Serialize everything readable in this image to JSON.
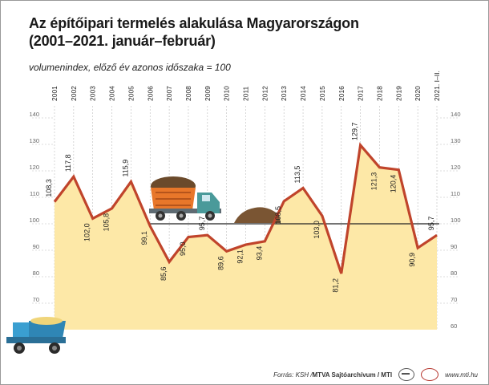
{
  "title_line1": "Az építőipari termelés alakulása Magyarországon",
  "title_line2": "(2001–2021. január–február)",
  "subtitle": "volumenindex, előző év azonos időszaka = 100",
  "footer": {
    "source": "Forrás: KSH / ",
    "archive": "MTVA Sajtóarchívum / MTI",
    "site": "www.mti.hu"
  },
  "chart_data": {
    "type": "area",
    "categories": [
      "2001",
      "2002",
      "2003",
      "2004",
      "2005",
      "2006",
      "2007",
      "2008",
      "2009",
      "2010",
      "2011",
      "2012",
      "2013",
      "2014",
      "2015",
      "2016",
      "2017",
      "2018",
      "2019",
      "2020",
      "2021. I–II."
    ],
    "values": [
      108.3,
      117.8,
      102.0,
      105.8,
      115.9,
      99.1,
      85.6,
      95.0,
      95.7,
      89.6,
      92.1,
      93.4,
      108.5,
      113.5,
      103.0,
      81.2,
      129.7,
      121.3,
      120.4,
      90.9,
      95.7
    ],
    "value_labels": [
      "108,3",
      "117,8",
      "102,0",
      "105,8",
      "115,9",
      "99,1",
      "85,6",
      "95,0",
      "95,7",
      "89,6",
      "92,1",
      "93,4",
      "108,5",
      "113,5",
      "103,0",
      "81,2",
      "129,7",
      "121,3",
      "120,4",
      "90,9",
      "95,7"
    ],
    "ylim": [
      60,
      140
    ],
    "yticks": [
      "60",
      "70",
      "80",
      "90",
      "100",
      "110",
      "120",
      "130",
      "140"
    ],
    "reference_line": 100,
    "grid": true,
    "colors": {
      "area": "#fde8a7",
      "line": "#c0442b",
      "reference": "#222222",
      "grid": "#bdbdbd"
    }
  }
}
